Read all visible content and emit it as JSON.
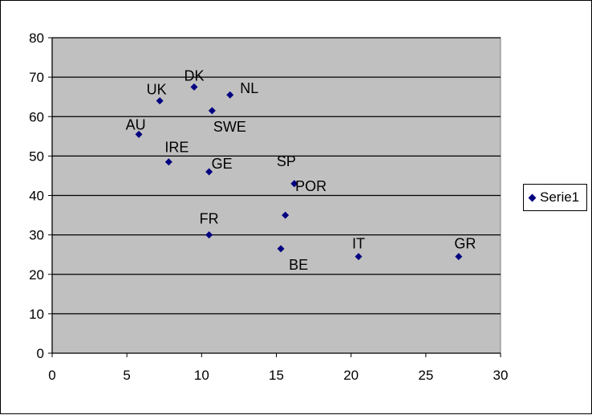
{
  "chart_data": {
    "type": "scatter",
    "title": "",
    "xlabel": "",
    "ylabel": "",
    "xlim": [
      0,
      30
    ],
    "ylim": [
      0,
      80
    ],
    "x_ticks": [
      0,
      5,
      10,
      15,
      20,
      25,
      30
    ],
    "y_ticks": [
      0,
      10,
      20,
      30,
      40,
      50,
      60,
      70,
      80
    ],
    "grid": "horizontal",
    "legend_position": "right",
    "colors": {
      "plot_background": "#c0c0c0",
      "marker": "#000080",
      "grid": "#000000"
    },
    "series": [
      {
        "name": "Serie1",
        "points": [
          {
            "label": "AU",
            "x": 5.8,
            "y": 55.5
          },
          {
            "label": "UK",
            "x": 7.2,
            "y": 64
          },
          {
            "label": "DK",
            "x": 9.5,
            "y": 67.5
          },
          {
            "label": "NL",
            "x": 11.9,
            "y": 65.5
          },
          {
            "label": "SWE",
            "x": 10.7,
            "y": 61.5
          },
          {
            "label": "IRE",
            "x": 7.8,
            "y": 48.5
          },
          {
            "label": "GE",
            "x": 10.5,
            "y": 46
          },
          {
            "label": "SP",
            "x": 16.2,
            "y": 43
          },
          {
            "label": "POR",
            "x": 15.6,
            "y": 35
          },
          {
            "label": "FR",
            "x": 10.5,
            "y": 30
          },
          {
            "label": "BE",
            "x": 15.3,
            "y": 26.5
          },
          {
            "label": "IT",
            "x": 20.5,
            "y": 24.5
          },
          {
            "label": "GR",
            "x": 27.2,
            "y": 24.5
          }
        ]
      }
    ]
  }
}
